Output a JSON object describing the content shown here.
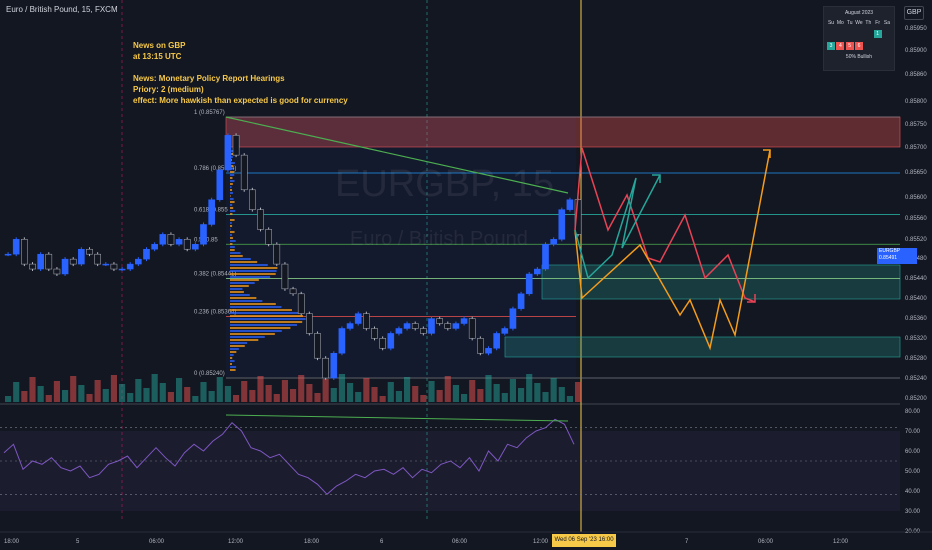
{
  "header": {
    "symbol_title": "Euro / British Pound, 15, FXCM"
  },
  "watermark": {
    "ticker": "EURGBP, 15",
    "name": "Euro / British Pound"
  },
  "news": {
    "line1": "News on GBP",
    "line2": "at 13:15 UTC",
    "line3": "News: Monetary Policy Report Hearings",
    "line4": "Priory: 2 (medium)",
    "line5": "effect: More hawkish than expected is good for currency"
  },
  "calendar": {
    "title": "August 2023",
    "weekdays": [
      "Su",
      "Mo",
      "Tu",
      "We",
      "Th",
      "Fr",
      "Sa"
    ],
    "footer": "50% Bullish",
    "row1_cells": [
      {
        "v": "",
        "c": ""
      },
      {
        "v": "",
        "c": ""
      },
      {
        "v": "",
        "c": ""
      },
      {
        "v": "",
        "c": ""
      },
      {
        "v": "",
        "c": ""
      },
      {
        "v": "1",
        "c": "#26a69a"
      },
      {
        "v": "",
        "c": ""
      }
    ],
    "row2_cells": [
      {
        "v": "3",
        "c": "#26a69a"
      },
      {
        "v": "4",
        "c": "#ef5350"
      },
      {
        "v": "5",
        "c": "#ef5350"
      },
      {
        "v": "6",
        "c": "#ef5350"
      },
      {
        "v": "",
        "c": ""
      },
      {
        "v": "",
        "c": ""
      },
      {
        "v": "",
        "c": ""
      }
    ]
  },
  "currency_button": "GBP",
  "price_label": {
    "ticker": "EURGBP",
    "price": "0.85491",
    "time": "12:04"
  },
  "time_label": "Wed 06 Sep '23   16:00",
  "colors": {
    "up": "#2962ff",
    "down": "#131722",
    "fib_green": "#26a69a",
    "fib_red": "#ef5350",
    "fib_blue": "#2196f3",
    "orange": "#f59c1a",
    "red": "#e84355",
    "teal": "#26a69a",
    "rsi": "#7e57c2",
    "volume_profile": "#f59c1a"
  },
  "chart_data": {
    "type": "line",
    "price_axis": [
      "0.85950",
      "0.85900",
      "0.85860",
      "0.85800",
      "0.85750",
      "0.85700",
      "0.85650",
      "0.85600",
      "0.85560",
      "0.85520",
      "0.85480",
      "0.85440",
      "0.85400",
      "0.85360",
      "0.85320",
      "0.85280",
      "0.85240",
      "0.85200"
    ],
    "rsi_axis": [
      "80.00",
      "70.00",
      "60.00",
      "50.00",
      "40.00",
      "30.00",
      "20.00"
    ],
    "time_axis": [
      "18:00",
      "5",
      "06:00",
      "12:00",
      "18:00",
      "6",
      "06:00",
      "12:00",
      "7",
      "06:00",
      "12:00"
    ],
    "fib_levels": [
      {
        "label": "1 (0.85767)",
        "value": 0.85767
      },
      {
        "label": "0.786 (0.85654)",
        "value": 0.85654
      },
      {
        "label": "0.618 (0.855",
        "value": 0.8557
      },
      {
        "label": "0.5 (0.85",
        "value": 0.8551
      },
      {
        "label": "0.382 (0.85441)",
        "value": 0.85441
      },
      {
        "label": "0.236 (0.85364)",
        "value": 0.85364
      },
      {
        "label": "0 (0.85240)",
        "value": 0.8524
      }
    ],
    "price_series": [
      0.8549,
      0.8552,
      0.8547,
      0.8546,
      0.8549,
      0.8546,
      0.8545,
      0.8548,
      0.8547,
      0.855,
      0.8549,
      0.8547,
      0.8547,
      0.8546,
      0.8546,
      0.8547,
      0.8548,
      0.855,
      0.8551,
      0.8553,
      0.8551,
      0.8552,
      0.855,
      0.8551,
      0.8555,
      0.856,
      0.8566,
      0.8573,
      0.8569,
      0.8562,
      0.8558,
      0.8554,
      0.8551,
      0.8547,
      0.8542,
      0.8541,
      0.8537,
      0.8533,
      0.8528,
      0.8524,
      0.8529,
      0.8534,
      0.8535,
      0.8537,
      0.8534,
      0.8532,
      0.853,
      0.8533,
      0.8534,
      0.8535,
      0.8534,
      0.8533,
      0.8536,
      0.8535,
      0.8534,
      0.8535,
      0.8536,
      0.8532,
      0.8529,
      0.853,
      0.8533,
      0.8534,
      0.8538,
      0.8541,
      0.8545,
      0.8546,
      0.8551,
      0.8552,
      0.8558,
      0.856,
      0.8553
    ],
    "rsi_series": [
      55,
      60,
      45,
      50,
      48,
      52,
      46,
      44,
      47,
      40,
      42,
      48,
      50,
      53,
      46,
      52,
      58,
      52,
      47,
      55,
      60,
      56,
      62,
      66,
      73,
      68,
      58,
      56,
      52,
      54,
      48,
      42,
      40,
      36,
      30,
      35,
      38,
      42,
      40,
      44,
      45,
      42,
      46,
      40,
      45,
      43,
      48,
      50,
      46,
      52,
      44,
      56,
      50,
      60,
      58,
      64,
      68,
      70,
      75,
      72,
      60
    ]
  }
}
